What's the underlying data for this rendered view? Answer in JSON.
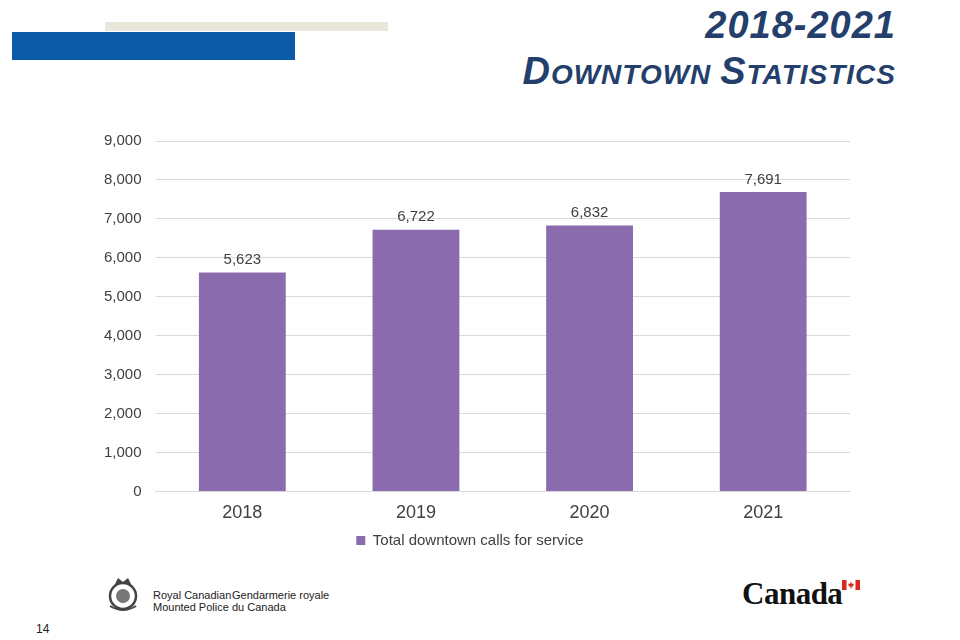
{
  "chart_data": {
    "type": "bar",
    "title": "2018-2021",
    "subtitle": "DOWNTOWN STATISTICS",
    "categories": [
      "2018",
      "2019",
      "2020",
      "2021"
    ],
    "series": [
      {
        "name": "Total downtown calls for service",
        "color": "#8a6bae",
        "values": [
          5623,
          6722,
          6832,
          7691
        ],
        "value_labels": [
          "5,623",
          "6,722",
          "6,832",
          "7,691"
        ]
      }
    ],
    "ylim": [
      0,
      9000
    ],
    "yticks": [
      0,
      {
        "value": 1000,
        "label": "1,000"
      },
      {
        "value": 2000,
        "label": "2,000"
      },
      {
        "value": 3000,
        "label": "3,000"
      },
      {
        "value": 4000,
        "label": "4,000"
      },
      {
        "value": 5000,
        "label": "5,000"
      },
      {
        "value": 6000,
        "label": "6,000"
      },
      {
        "value": 7000,
        "label": "7,000"
      },
      {
        "value": 8000,
        "label": "8,000"
      },
      {
        "value": 9000,
        "label": "9,000"
      }
    ],
    "grid": true,
    "legend": "bottom",
    "data_labels": true
  },
  "footer": {
    "agency_en": [
      "Royal Canadian",
      "Mounted Police"
    ],
    "agency_fr": [
      "Gendarmerie royale",
      "du Canada"
    ],
    "wordmark": "Canada",
    "page": 14
  }
}
